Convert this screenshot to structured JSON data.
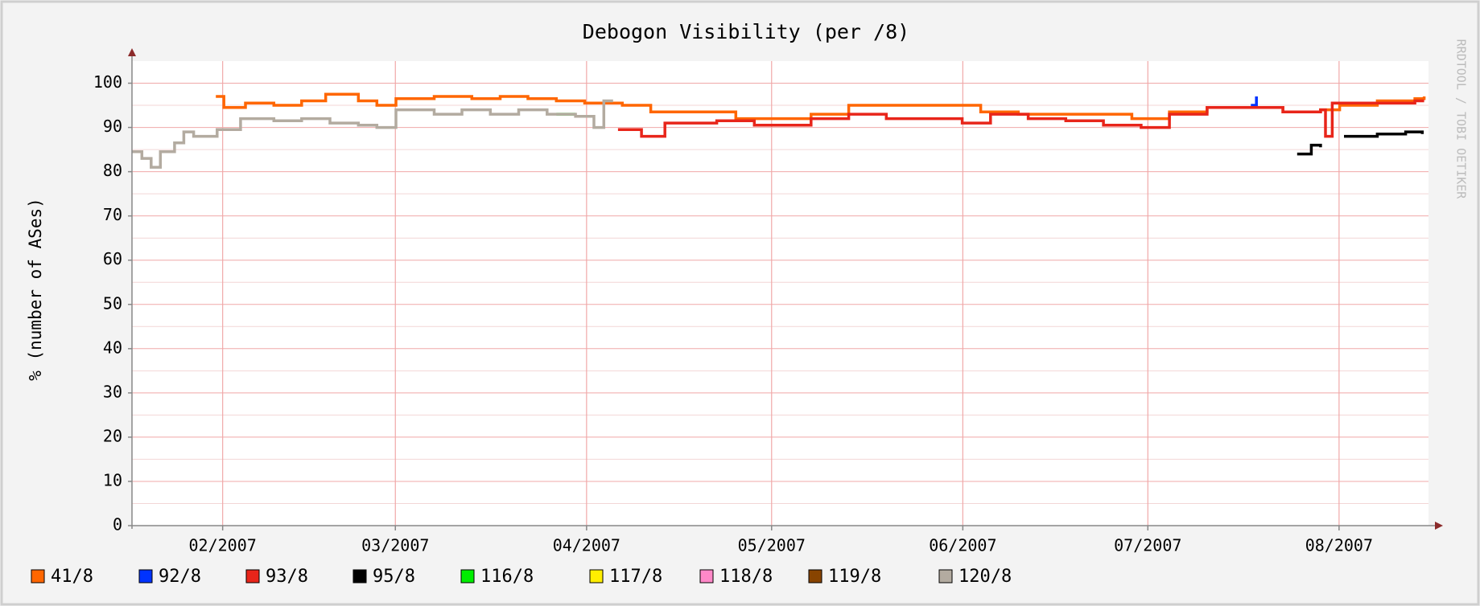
{
  "chart_data": {
    "type": "line",
    "step": true,
    "title": "Debogon Visibility (per /8)",
    "y_label": "% (number of ASes)",
    "watermark": "RRDTOOL / TOBI OETIKER",
    "xlim": [
      16.3,
      226.5
    ],
    "xticks": [
      {
        "value": 31,
        "label": "02/2007"
      },
      {
        "value": 59,
        "label": "03/2007"
      },
      {
        "value": 90,
        "label": "04/2007"
      },
      {
        "value": 120,
        "label": "05/2007"
      },
      {
        "value": 151,
        "label": "06/2007"
      },
      {
        "value": 181,
        "label": "07/2007"
      },
      {
        "value": 212,
        "label": "08/2007"
      }
    ],
    "ylim": [
      0,
      105
    ],
    "yticks": [
      0,
      10,
      20,
      30,
      40,
      50,
      60,
      70,
      80,
      90,
      100
    ],
    "yminorticks": [
      5,
      15,
      25,
      35,
      45,
      55,
      65,
      75,
      85,
      95
    ],
    "grid": true,
    "legend": "bottom",
    "series": [
      {
        "name": "41/8",
        "color": "#ff6600",
        "x": [
          29.9,
          31.2,
          34.7,
          39.3,
          43.8,
          47.7,
          53,
          56,
          59.1,
          65.3,
          71.4,
          76,
          80.5,
          85.1,
          89.7,
          95.8,
          100.4,
          108.1,
          114.2,
          120.3,
          126.4,
          132.5,
          140.2,
          147.8,
          153.9,
          160,
          166.2,
          172.3,
          178.4,
          184.5,
          190.6,
          196.7,
          202.9,
          209,
          212.1,
          218.2,
          224.3,
          225.8
        ],
        "values": [
          97,
          94.5,
          95.5,
          95,
          96,
          97.5,
          96,
          95,
          96.5,
          97,
          96.5,
          97,
          96.5,
          96,
          95.5,
          95,
          93.5,
          93.5,
          92,
          92,
          93,
          95,
          95,
          95,
          93.5,
          93,
          93,
          93,
          92,
          93.5,
          94.5,
          94.5,
          93.5,
          94,
          95,
          96,
          96.5,
          97
        ]
      },
      {
        "name": "92/8",
        "color": "#0033ff",
        "x": [
          197.7,
          198.6
        ],
        "values": [
          95,
          97
        ]
      },
      {
        "name": "93/8",
        "color": "#e8251a",
        "x": [
          95.1,
          98.9,
          102.7,
          111.1,
          117.2,
          123.3,
          126.4,
          132.5,
          138.6,
          144.8,
          150.9,
          155.5,
          161.6,
          167.7,
          173.8,
          179.9,
          184.5,
          190.6,
          196.7,
          202.9,
          209,
          209.8,
          210.9,
          218.2,
          224.3,
          225.8
        ],
        "values": [
          89.5,
          88,
          91,
          91.5,
          90.5,
          90.5,
          92,
          93,
          92,
          92,
          91,
          93,
          92,
          91.5,
          90.5,
          90,
          93,
          94.5,
          94.5,
          93.5,
          94,
          88,
          95.5,
          95.5,
          96,
          96
        ]
      },
      {
        "name": "95/8",
        "color": "#000000",
        "x": [
          205.2,
          207.5,
          209,
          211,
          212.8,
          218.2,
          222.8,
          225.5
        ],
        "values": [
          84,
          86,
          85.5,
          null,
          88,
          88.5,
          89,
          88.5
        ]
      },
      {
        "name": "116/8",
        "color": "#00ee00",
        "x": [
          85.1,
          88.2
        ],
        "values": [
          93,
          93
        ]
      },
      {
        "name": "117/8",
        "color": "#ffee00",
        "x": [],
        "values": []
      },
      {
        "name": "118/8",
        "color": "#ff88c8",
        "x": [],
        "values": []
      },
      {
        "name": "119/8",
        "color": "#884400",
        "x": [],
        "values": []
      },
      {
        "name": "120/8",
        "color": "#b3aba0",
        "x": [
          16.3,
          17.9,
          19.4,
          20.9,
          23.2,
          24.7,
          26.3,
          30.1,
          33.9,
          39.3,
          43.8,
          48.4,
          53,
          56,
          59.1,
          65.3,
          69.8,
          74.4,
          79,
          83.6,
          88.2,
          91.2,
          92.8,
          94.3
        ],
        "values": [
          84.5,
          83,
          81,
          84.5,
          86.5,
          89,
          88,
          89.5,
          92,
          91.5,
          92,
          91,
          90.5,
          90,
          94,
          93,
          94,
          93,
          94,
          93,
          92.5,
          90,
          96,
          96
        ]
      }
    ]
  }
}
